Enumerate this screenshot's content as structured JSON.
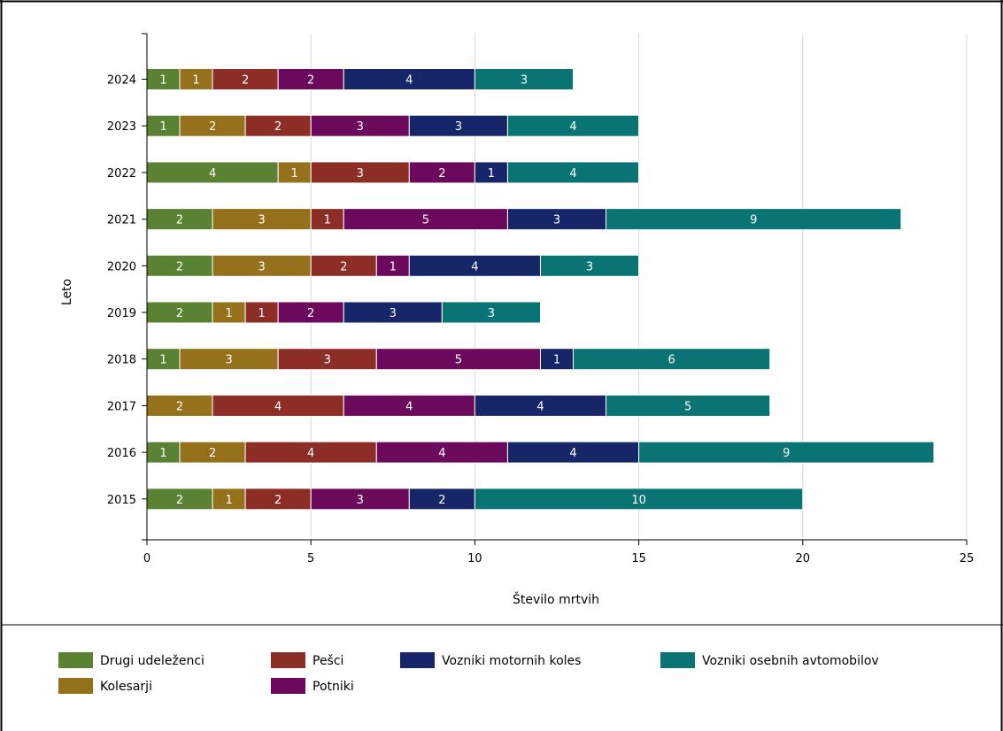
{
  "chart_data": {
    "type": "bar",
    "orientation": "horizontal",
    "stacked": true,
    "xlabel": "Število mrtvih",
    "ylabel": "Leto",
    "xlim": [
      0,
      25
    ],
    "xticks": [
      0,
      5,
      10,
      15,
      20,
      25
    ],
    "grid": true,
    "legend_position": "bottom",
    "categories": [
      "2015",
      "2016",
      "2017",
      "2018",
      "2019",
      "2020",
      "2021",
      "2022",
      "2023",
      "2024"
    ],
    "series": [
      {
        "name": "Drugi udeleženci",
        "color": "#5b8233",
        "values": [
          2,
          1,
          0,
          1,
          2,
          2,
          2,
          4,
          1,
          1
        ]
      },
      {
        "name": "Kolesarji",
        "color": "#96711c",
        "values": [
          1,
          2,
          2,
          3,
          1,
          3,
          3,
          1,
          2,
          1
        ]
      },
      {
        "name": "Pešci",
        "color": "#8c2d26",
        "values": [
          2,
          4,
          4,
          3,
          1,
          2,
          1,
          3,
          2,
          2
        ]
      },
      {
        "name": "Potniki",
        "color": "#6b0a5c",
        "values": [
          3,
          4,
          4,
          5,
          2,
          1,
          5,
          2,
          3,
          2
        ]
      },
      {
        "name": "Vozniki motornih koles",
        "color": "#172669",
        "values": [
          2,
          4,
          4,
          1,
          3,
          4,
          3,
          1,
          3,
          4
        ]
      },
      {
        "name": "Vozniki osebnih avtomobilov",
        "color": "#0a7373",
        "values": [
          10,
          9,
          5,
          6,
          3,
          3,
          9,
          4,
          4,
          3
        ]
      }
    ]
  }
}
